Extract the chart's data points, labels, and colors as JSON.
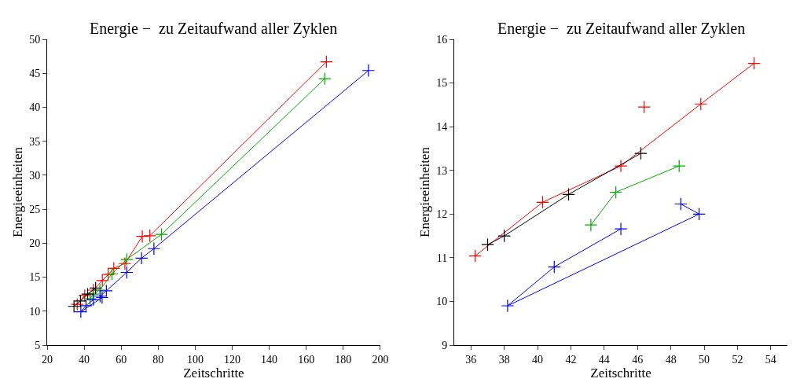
{
  "chart_data": [
    {
      "type": "line",
      "title": "Energie −  zu Zeitaufwand aller Zyklen",
      "xlabel": "Zeitschritte",
      "ylabel": "Energieeinheiten",
      "xlim": [
        20,
        200
      ],
      "ylim": [
        5,
        50
      ],
      "xticks": [
        20,
        40,
        60,
        80,
        100,
        120,
        140,
        160,
        180,
        200
      ],
      "yticks": [
        5,
        10,
        15,
        20,
        25,
        30,
        35,
        40,
        45,
        50
      ],
      "marker": "cross",
      "line_style": "solid",
      "series": [
        {
          "color": "#ff0000",
          "x": [
            170.9,
            75.5,
            71.4,
            62,
            56,
            53.0,
            49.8,
            45.0,
            40.3,
            36.25
          ],
          "values": [
            46.7,
            21.1,
            21.0,
            17.0,
            16.3,
            15.4,
            14.5,
            13.1,
            12.3,
            11.0
          ]
        },
        {
          "color": "#00aa00",
          "x": [
            170,
            81.8,
            63,
            55,
            48.5,
            44.7,
            43.2
          ],
          "values": [
            44.2,
            21.3,
            17.6,
            15.5,
            13.1,
            12.5,
            11.8
          ]
        },
        {
          "color": "#0000ff",
          "x": [
            193.6,
            77.7,
            71,
            63,
            52,
            48.6,
            49.7,
            38.2,
            41.0,
            45.0
          ],
          "values": [
            45.4,
            19.2,
            17.8,
            15.7,
            13.0,
            12.2,
            12.0,
            9.9,
            10.8,
            11.7
          ]
        },
        {
          "color": "#000000",
          "x": [
            46.2,
            41.86,
            38,
            34.5
          ],
          "values": [
            13.4,
            12.5,
            11.5,
            10.7
          ]
        }
      ]
    },
    {
      "type": "line",
      "title": "Energie −  zu Zeitaufwand aller Zyklen",
      "xlabel": "Zeitschritte",
      "ylabel": "Energieeinheiten",
      "xlim": [
        35,
        55
      ],
      "ylim": [
        9,
        16
      ],
      "xticks": [
        36,
        38,
        40,
        42,
        44,
        46,
        48,
        50,
        52,
        54
      ],
      "yticks": [
        9,
        10,
        11,
        12,
        13,
        14,
        15,
        16
      ],
      "marker": "cross",
      "line_style": "solid",
      "series": [
        {
          "color": "#ff0000",
          "x": [
            53.0,
            49.8,
            45.0,
            40.3,
            36.25
          ],
          "values": [
            15.45,
            14.52,
            13.1,
            12.27,
            11.04
          ]
        },
        {
          "color": "#ff0000",
          "x": [
            46.4
          ],
          "values": [
            14.45
          ]
        },
        {
          "color": "#00aa00",
          "x": [
            48.5,
            44.7,
            43.2
          ],
          "values": [
            13.1,
            12.5,
            11.75
          ]
        },
        {
          "color": "#0000ff",
          "x": [
            48.6,
            49.7,
            38.2,
            41.0,
            45.0
          ],
          "values": [
            12.23,
            12.0,
            9.9,
            10.79,
            11.66
          ]
        },
        {
          "color": "#000000",
          "x": [
            46.2,
            41.86,
            38,
            37
          ],
          "values": [
            13.39,
            12.45,
            11.5,
            11.3
          ]
        }
      ]
    }
  ]
}
